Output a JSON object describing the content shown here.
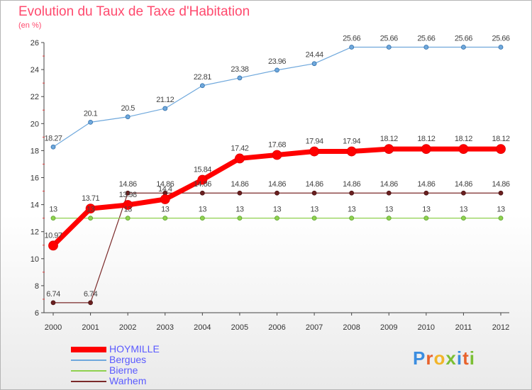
{
  "title": "Evolution du Taux de Taxe d'Habitation",
  "subtitle": "(en %)",
  "logo": {
    "text": "Proxiti",
    "colors": [
      "#3b8de0",
      "#e8622c",
      "#f2b52a",
      "#7bbf34",
      "#3b8de0",
      "#e8622c",
      "#7bbf34"
    ]
  },
  "chart_data": {
    "type": "line",
    "title": "Evolution du Taux de Taxe d'Habitation",
    "ylabel": "(en %)",
    "xlabel": "",
    "x": [
      "2000",
      "2001",
      "2002",
      "2003",
      "2004",
      "2005",
      "2006",
      "2007",
      "2008",
      "2009",
      "2010",
      "2011",
      "2012"
    ],
    "ylim": [
      6,
      26
    ],
    "yticks": [
      "6",
      "8",
      "10",
      "12",
      "14",
      "16",
      "18",
      "20",
      "22",
      "24",
      "26"
    ],
    "grid": false,
    "legend_position": "bottom-left",
    "series": [
      {
        "name": "HOYMILLE",
        "color": "#ff0000",
        "values": [
          10.97,
          13.71,
          13.98,
          14.4,
          15.84,
          17.42,
          17.68,
          17.94,
          17.94,
          18.12,
          18.12,
          18.12,
          18.12
        ],
        "labels": [
          "10.97",
          "13.71",
          "13.98",
          "14.4",
          "15.84",
          "17.42",
          "17.68",
          "17.94",
          "17.94",
          "18.12",
          "18.12",
          "18.12",
          "18.12"
        ]
      },
      {
        "name": "Bergues",
        "color": "#6fa8dc",
        "values": [
          18.27,
          20.1,
          20.5,
          21.12,
          22.81,
          23.38,
          23.96,
          24.44,
          25.66,
          25.66,
          25.66,
          25.66,
          25.66
        ],
        "labels": [
          "18.27",
          "20.1",
          "20.5",
          "21.12",
          "22.81",
          "23.38",
          "23.96",
          "24.44",
          "25.66",
          "25.66",
          "25.66",
          "25.66",
          "25.66"
        ]
      },
      {
        "name": "Bierne",
        "color": "#8fd14f",
        "values": [
          13,
          13,
          13,
          13,
          13,
          13,
          13,
          13,
          13,
          13,
          13,
          13,
          13
        ],
        "labels": [
          "13",
          "13",
          "13",
          "13",
          "13",
          "13",
          "13",
          "13",
          "13",
          "13",
          "13",
          "13",
          "13"
        ]
      },
      {
        "name": "Warhem",
        "color": "#7b2a2a",
        "values": [
          6.74,
          6.74,
          14.86,
          14.86,
          14.86,
          14.86,
          14.86,
          14.86,
          14.86,
          14.86,
          14.86,
          14.86,
          14.86
        ],
        "labels": [
          "6.74",
          "6.74",
          "14.86",
          "14.86",
          "14.86",
          "14.86",
          "14.86",
          "14.86",
          "14.86",
          "14.86",
          "14.86",
          "14.86",
          "14.86"
        ]
      }
    ]
  }
}
